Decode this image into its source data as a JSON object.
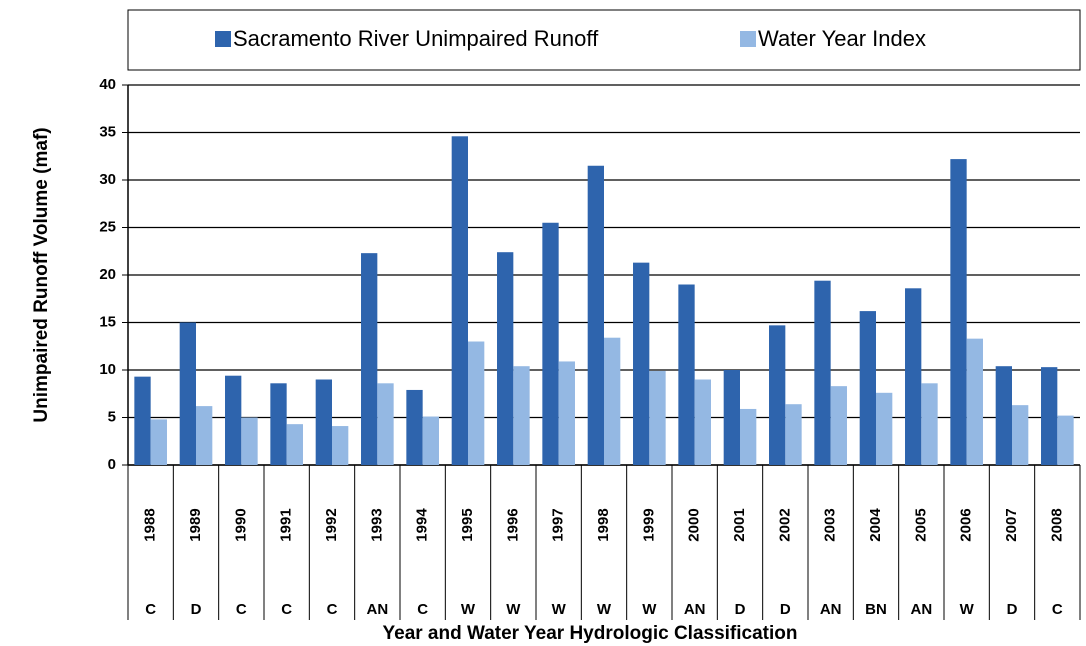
{
  "chart_data": {
    "type": "bar",
    "legend_position": "top",
    "x_label": "Year and Water Year Hydrologic Classification",
    "y_label": "Unimpaired Runoff Volume (maf)",
    "categories": [
      "1988",
      "1989",
      "1990",
      "1991",
      "1992",
      "1993",
      "1994",
      "1995",
      "1996",
      "1997",
      "1998",
      "1999",
      "2000",
      "2001",
      "2002",
      "2003",
      "2004",
      "2005",
      "2006",
      "2007",
      "2008"
    ],
    "classifications": [
      "C",
      "D",
      "C",
      "C",
      "C",
      "AN",
      "C",
      "W",
      "W",
      "W",
      "W",
      "W",
      "AN",
      "D",
      "D",
      "AN",
      "BN",
      "AN",
      "W",
      "D",
      "C"
    ],
    "series": [
      {
        "name": "Sacramento River Unimpaired Runoff",
        "color": "#2e64ad",
        "values": [
          9.3,
          15.0,
          9.4,
          8.6,
          9.0,
          22.3,
          7.9,
          34.6,
          22.4,
          25.5,
          31.5,
          21.3,
          19.0,
          10.0,
          14.7,
          19.4,
          16.2,
          18.6,
          32.2,
          10.4,
          10.3
        ]
      },
      {
        "name": "Water Year Index",
        "color": "#94b8e3",
        "values": [
          4.8,
          6.2,
          5.0,
          4.3,
          4.1,
          8.6,
          5.1,
          13.0,
          10.4,
          10.9,
          13.4,
          9.9,
          9.0,
          5.9,
          6.4,
          8.3,
          7.6,
          8.6,
          13.3,
          6.3,
          5.2
        ]
      }
    ],
    "ylim": [
      0,
      40
    ],
    "yticks": [
      0,
      5,
      10,
      15,
      20,
      25,
      30,
      35,
      40
    ],
    "grid": true
  }
}
